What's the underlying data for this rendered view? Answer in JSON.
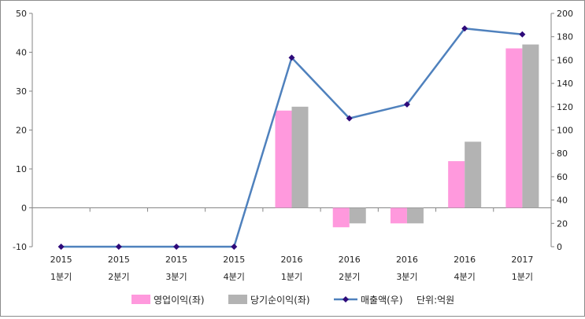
{
  "chart_data": {
    "type": "bar",
    "categories": [
      [
        "2015",
        "1분기"
      ],
      [
        "2015",
        "2분기"
      ],
      [
        "2015",
        "3분기"
      ],
      [
        "2015",
        "4분기"
      ],
      [
        "2016",
        "1분기"
      ],
      [
        "2016",
        "2분기"
      ],
      [
        "2016",
        "3분기"
      ],
      [
        "2016",
        "4분기"
      ],
      [
        "2017",
        "1분기"
      ]
    ],
    "series": [
      {
        "name": "영업이익(좌)",
        "type": "bar",
        "axis": "left",
        "color": "#ff99dd",
        "values": [
          null,
          null,
          null,
          null,
          25,
          -5,
          -4,
          12,
          41
        ]
      },
      {
        "name": "당기순이익(좌)",
        "type": "bar",
        "axis": "left",
        "color": "#b3b3b3",
        "values": [
          null,
          null,
          null,
          null,
          26,
          -4,
          -4,
          17,
          42
        ]
      },
      {
        "name": "매출액(우)",
        "type": "line",
        "axis": "right",
        "color": "#4f81bd",
        "marker_color": "#2e0a7a",
        "values": [
          0,
          0,
          0,
          0,
          162,
          110,
          122,
          187,
          182
        ]
      }
    ],
    "left_axis": {
      "ylim": [
        -10,
        50
      ],
      "ticks": [
        -10,
        0,
        10,
        20,
        30,
        40,
        50
      ]
    },
    "right_axis": {
      "ylim": [
        0,
        200
      ],
      "ticks": [
        0,
        20,
        40,
        60,
        80,
        100,
        120,
        140,
        160,
        180,
        200
      ]
    },
    "grid": false,
    "legend_position": "bottom",
    "unit_note": "단위:억원"
  }
}
